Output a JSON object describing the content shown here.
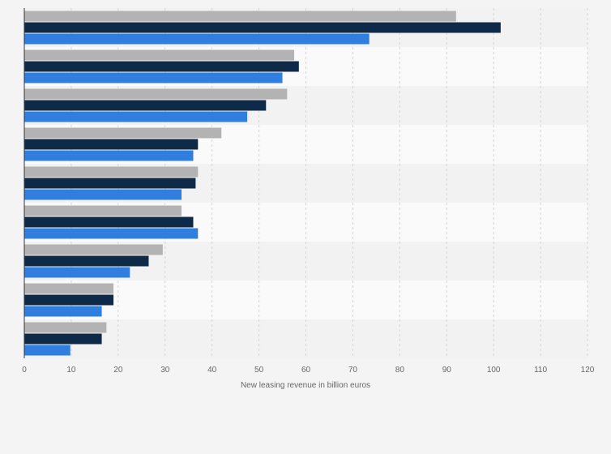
{
  "chart_data": {
    "type": "bar",
    "orientation": "horizontal",
    "xlabel": "New leasing revenue in billion euros",
    "xlim": [
      0,
      120
    ],
    "x_ticks": [
      0,
      10,
      20,
      30,
      40,
      50,
      60,
      70,
      80,
      90,
      100,
      110,
      120
    ],
    "grid": true,
    "legend": "none",
    "categories": [
      "",
      "",
      "",
      "",
      "",
      "",
      "",
      "",
      ""
    ],
    "series": [
      {
        "color": "#b3b3b3",
        "values": [
          92,
          57.5,
          56,
          42,
          37,
          33.5,
          29.5,
          19,
          17.5
        ]
      },
      {
        "color": "#0f2a48",
        "values": [
          101.5,
          58.5,
          51.5,
          37,
          36.5,
          36,
          26.5,
          19,
          16.5
        ]
      },
      {
        "color": "#2f7ee0",
        "values": [
          73.5,
          55,
          47.5,
          36,
          33.5,
          37,
          22.5,
          16.5,
          9.8
        ]
      }
    ]
  }
}
